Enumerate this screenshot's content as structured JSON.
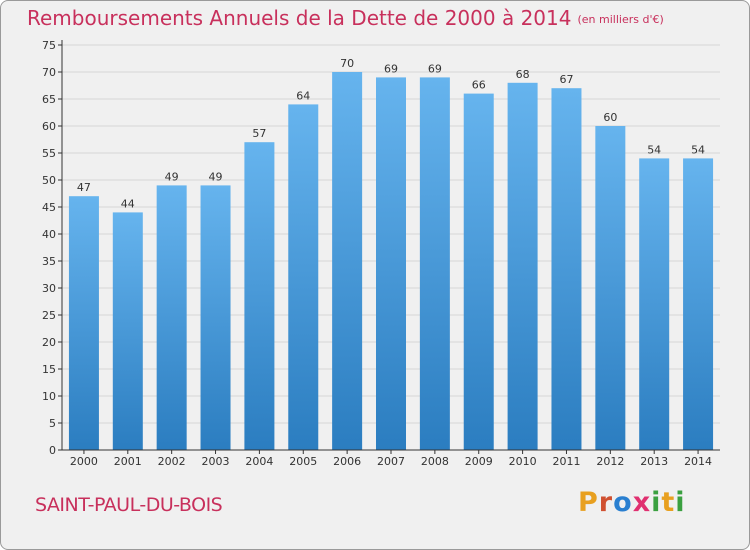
{
  "header": {
    "title": "Remboursements Annuels de la Dette de 2000 à 2014",
    "unit": "(en milliers d'€)"
  },
  "footer": {
    "commune": "SAINT-PAUL-DU-BOIS",
    "logo_text": "Proxiti",
    "logo_colors": [
      "#e8a020",
      "#d05030",
      "#2a7fd0",
      "#e03070",
      "#3aa040",
      "#e8a020",
      "#3aa040"
    ]
  },
  "colors": {
    "title": "#c8305c",
    "bar_top": "#66b4ee",
    "bar_bottom": "#2b7dc0",
    "grid": "#d6d6d6",
    "axis": "#333333"
  },
  "chart_data": {
    "type": "bar",
    "title": "Remboursements Annuels de la Dette de 2000 à 2014",
    "categories": [
      "2000",
      "2001",
      "2002",
      "2003",
      "2004",
      "2005",
      "2006",
      "2007",
      "2008",
      "2009",
      "2010",
      "2011",
      "2012",
      "2013",
      "2014"
    ],
    "values": [
      47,
      44,
      49,
      49,
      57,
      64,
      70,
      69,
      69,
      66,
      68,
      67,
      60,
      54,
      54
    ],
    "ylim": [
      0,
      75
    ],
    "yticks": [
      0,
      5,
      10,
      15,
      20,
      25,
      30,
      35,
      40,
      45,
      50,
      55,
      60,
      65,
      70,
      75
    ],
    "grid": true,
    "data_labels": true
  }
}
